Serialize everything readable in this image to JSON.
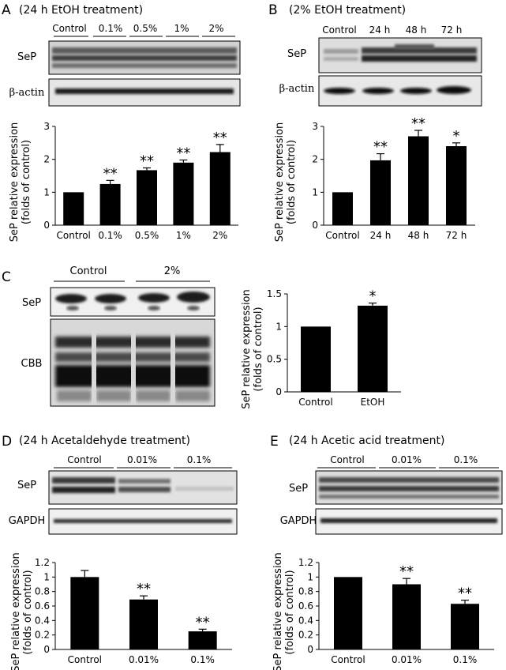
{
  "figure": {
    "panel_A": {
      "letter": "A",
      "title": "(24 h EtOH treatment)",
      "lanes": [
        "Control",
        "0.1%",
        "0.5%",
        "1%",
        "2%"
      ],
      "blot_labels": [
        "SeP",
        "β-actin"
      ]
    },
    "panel_B": {
      "letter": "B",
      "title": "(2%  EtOH treatment)",
      "lanes": [
        "Control",
        "24 h",
        "48 h",
        "72 h"
      ],
      "blot_labels": [
        "SeP",
        "β-actin"
      ]
    },
    "panel_C": {
      "letter": "C",
      "groups": [
        "Control",
        "2%"
      ],
      "blot_labels": [
        "SeP",
        "CBB"
      ]
    },
    "panel_D": {
      "letter": "D",
      "title": "(24 h Acetaldehyde treatment)",
      "lanes": [
        "Control",
        "0.01%",
        "0.1%"
      ],
      "blot_labels": [
        "SeP",
        "GAPDH"
      ]
    },
    "panel_E": {
      "letter": "E",
      "title": "(24 h Acetic acid treatment)",
      "lanes": [
        "Control",
        "0.01%",
        "0.1%"
      ],
      "blot_labels": [
        "SeP",
        "GAPDH"
      ]
    }
  },
  "chart_data": [
    {
      "id": "A",
      "type": "bar",
      "categories": [
        "Control",
        "0.1%",
        "0.5%",
        "1%",
        "2%"
      ],
      "values": [
        1.0,
        1.25,
        1.67,
        1.9,
        2.22
      ],
      "errors": [
        0.0,
        0.11,
        0.07,
        0.08,
        0.23
      ],
      "significance": [
        "",
        "**",
        "**",
        "**",
        "**"
      ],
      "ylabel": "SeP relative expression",
      "ylabel2": "(folds of control)",
      "ylim": [
        0,
        3
      ],
      "yticks": [
        0,
        1,
        2,
        3
      ]
    },
    {
      "id": "B",
      "type": "bar",
      "categories": [
        "Control",
        "24 h",
        "48 h",
        "72 h"
      ],
      "values": [
        1.0,
        1.97,
        2.7,
        2.4
      ],
      "errors": [
        0.0,
        0.2,
        0.18,
        0.1
      ],
      "significance": [
        "",
        "**",
        "**",
        "*"
      ],
      "ylabel": "SeP relative expression",
      "ylabel2": "(folds of control)",
      "ylim": [
        0,
        3
      ],
      "yticks": [
        0,
        1,
        2,
        3
      ]
    },
    {
      "id": "C",
      "type": "bar",
      "categories": [
        "Control",
        "EtOH"
      ],
      "values": [
        1.0,
        1.32
      ],
      "errors": [
        0.0,
        0.04
      ],
      "significance": [
        "",
        "*"
      ],
      "ylabel": "SeP relative expression",
      "ylabel2": "(folds of control)",
      "ylim": [
        0,
        1.5
      ],
      "yticks": [
        0,
        0.5,
        1,
        1.5
      ]
    },
    {
      "id": "D",
      "type": "bar",
      "categories": [
        "Control",
        "0.01%",
        "0.1%"
      ],
      "values": [
        1.0,
        0.69,
        0.25
      ],
      "errors": [
        0.09,
        0.05,
        0.03
      ],
      "significance": [
        "",
        "**",
        "**"
      ],
      "ylabel": "SeP relative expression",
      "ylabel2": "(folds of control)",
      "ylim": [
        0,
        1.2
      ],
      "yticks": [
        0,
        0.2,
        0.4,
        0.6,
        0.8,
        1,
        1.2
      ]
    },
    {
      "id": "E",
      "type": "bar",
      "categories": [
        "Control",
        "0.01%",
        "0.1%"
      ],
      "values": [
        1.0,
        0.9,
        0.63
      ],
      "errors": [
        0.0,
        0.08,
        0.05
      ],
      "significance": [
        "",
        "**",
        "**"
      ],
      "ylabel": "SeP relative expression",
      "ylabel2": "(folds of control)",
      "ylim": [
        0,
        1.2
      ],
      "yticks": [
        0,
        0.2,
        0.4,
        0.6,
        0.8,
        1,
        1.2
      ]
    }
  ]
}
